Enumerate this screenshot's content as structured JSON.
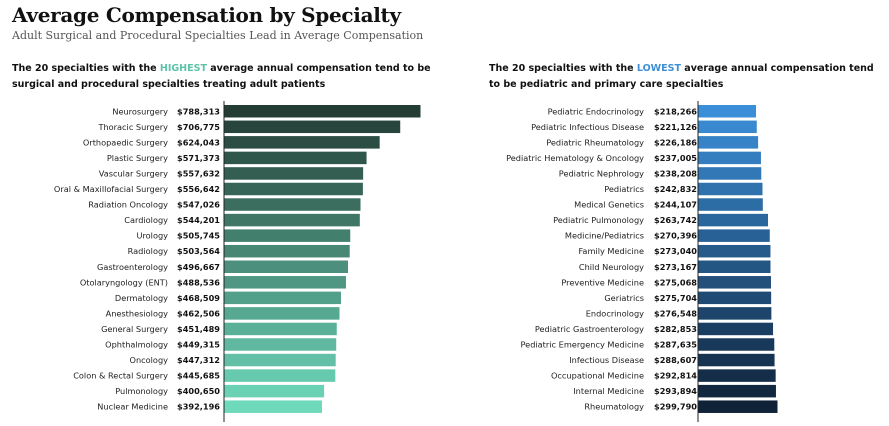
{
  "header": {
    "title": "Average Compensation by Specialty",
    "subtitle": "Adult Surgical and Procedural Specialties Lead in Average Compensation"
  },
  "panels": {
    "left": {
      "pre": "The 20 specialties with the ",
      "highlight": "HIGHEST",
      "post": " average annual compensation tend to be surgical and procedural specialties treating adult patients",
      "highlight_color": "#5ec3a8"
    },
    "right": {
      "pre": "The 20 specialties with the ",
      "highlight": "LOWEST",
      "post": " average annual compensation tend to be pediatric and primary care specialties",
      "highlight_color": "#3d8fd6"
    }
  },
  "chart_data": [
    {
      "type": "bar",
      "orientation": "horizontal",
      "categories": [
        "Neurosurgery",
        "Thoracic Surgery",
        "Orthopaedic Surgery",
        "Plastic Surgery",
        "Vascular Surgery",
        "Oral & Maxillofacial Surgery",
        "Radiation Oncology",
        "Cardiology",
        "Urology",
        "Radiology",
        "Gastroenterology",
        "Otolaryngology (ENT)",
        "Dermatology",
        "Anesthesiology",
        "General Surgery",
        "Ophthalmology",
        "Oncology",
        "Colon & Rectal Surgery",
        "Pulmonology",
        "Nuclear Medicine"
      ],
      "values": [
        788313,
        706775,
        624043,
        571373,
        557632,
        556642,
        547026,
        544201,
        505745,
        503564,
        496667,
        488536,
        468509,
        462506,
        451489,
        449315,
        447312,
        445685,
        400650,
        392196
      ],
      "labels": [
        "$788,313",
        "$706,775",
        "$624,043",
        "$571,373",
        "$557,632",
        "$556,642",
        "$547,026",
        "$544,201",
        "$505,745",
        "$503,564",
        "$496,667",
        "$488,536",
        "$468,509",
        "$462,506",
        "$451,489",
        "$449,315",
        "$447,312",
        "$445,685",
        "$400,650",
        "$392,196"
      ],
      "color_start": "#233d35",
      "color_end": "#6fd9bb"
    },
    {
      "type": "bar",
      "orientation": "horizontal",
      "categories": [
        "Pediatric Endocrinology",
        "Pediatric Infectious Disease",
        "Pediatric Rheumatology",
        "Pediatric Hematology & Oncology",
        "Pediatric Nephrology",
        "Pediatrics",
        "Medical Genetics",
        "Pediatric Pulmonology",
        "Medicine/Pediatrics",
        "Family Medicine",
        "Child Neurology",
        "Preventive Medicine",
        "Geriatrics",
        "Endocrinology",
        "Pediatric Gastroenterology",
        "Pediatric Emergency Medicine",
        "Infectious Disease",
        "Occupational Medicine",
        "Internal Medicine",
        "Rheumatology"
      ],
      "values": [
        218266,
        221126,
        226186,
        237005,
        238208,
        242832,
        244107,
        263742,
        270396,
        273040,
        273167,
        275068,
        275704,
        276548,
        282853,
        287635,
        288607,
        292814,
        293894,
        299790
      ],
      "labels": [
        "$218,266",
        "$221,126",
        "$226,186",
        "$237,005",
        "$238,208",
        "$242,832",
        "$244,107",
        "$263,742",
        "$270,396",
        "$273,040",
        "$273,167",
        "$275,068",
        "$275,704",
        "$276,548",
        "$282,853",
        "$287,635",
        "$288,607",
        "$292,814",
        "$293,894",
        "$299,790"
      ],
      "color_start": "#3b8fd8",
      "color_end": "#0f2238"
    }
  ]
}
